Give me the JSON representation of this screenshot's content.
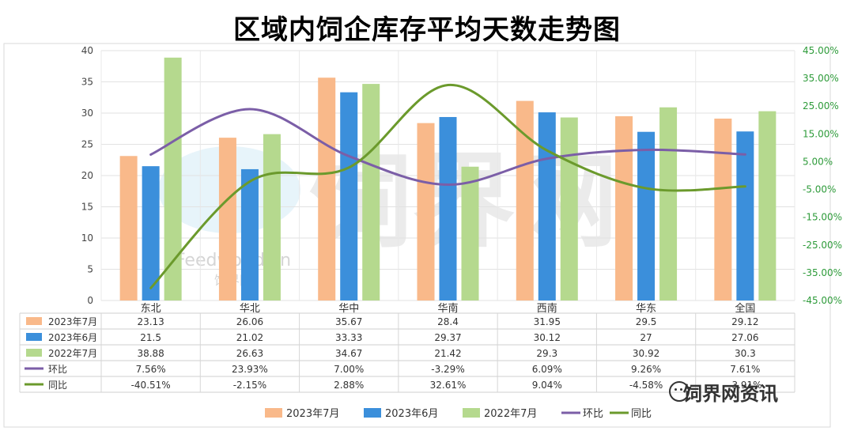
{
  "chart_data": {
    "type": "bar",
    "title": "区域内饲企库存平均天数走势图",
    "categories": [
      "东北",
      "华北",
      "华中",
      "华南",
      "西南",
      "华东",
      "全国"
    ],
    "series": [
      {
        "name": "2023年7月",
        "kind": "bar",
        "axis": "left",
        "color": "#F9B98A",
        "values": [
          23.13,
          26.06,
          35.67,
          28.4,
          31.95,
          29.5,
          29.12
        ]
      },
      {
        "name": "2023年6月",
        "kind": "bar",
        "axis": "left",
        "color": "#3B8FDB",
        "values": [
          21.5,
          21.02,
          33.33,
          29.37,
          30.12,
          27,
          27.06
        ]
      },
      {
        "name": "2022年7月",
        "kind": "bar",
        "axis": "left",
        "color": "#B5D98E",
        "values": [
          38.88,
          26.63,
          34.67,
          21.42,
          29.3,
          30.92,
          30.3
        ]
      },
      {
        "name": "环比",
        "kind": "line",
        "axis": "right",
        "color": "#7B5EA7",
        "values": [
          7.56,
          23.93,
          7.0,
          -3.29,
          6.09,
          9.26,
          7.61
        ]
      },
      {
        "name": "同比",
        "kind": "line",
        "axis": "right",
        "color": "#6B9A2C",
        "values": [
          -40.51,
          -2.15,
          2.88,
          32.61,
          9.04,
          -4.58,
          -3.91
        ]
      }
    ],
    "table_text": [
      [
        "23.13",
        "26.06",
        "35.67",
        "28.4",
        "31.95",
        "29.5",
        "29.12"
      ],
      [
        "21.5",
        "21.02",
        "33.33",
        "29.37",
        "30.12",
        "27",
        "27.06"
      ],
      [
        "38.88",
        "26.63",
        "34.67",
        "21.42",
        "29.3",
        "30.92",
        "30.3"
      ],
      [
        "7.56%",
        "23.93%",
        "7.00%",
        "-3.29%",
        "6.09%",
        "9.26%",
        "7.61%"
      ],
      [
        "-40.51%",
        "-2.15%",
        "2.88%",
        "32.61%",
        "9.04%",
        "-4.58%",
        "-3.91%"
      ]
    ],
    "y_left": {
      "min": 0,
      "max": 40,
      "step": 5,
      "ticks": [
        "0",
        "5",
        "10",
        "15",
        "20",
        "25",
        "30",
        "35",
        "40"
      ]
    },
    "y_right": {
      "min": -45,
      "max": 45,
      "ticks": [
        "-45.00%",
        "-35.00%",
        "-25.00%",
        "-15.00%",
        "-5.00%",
        "5.00%",
        "15.00%",
        "25.00%",
        "35.00%",
        "45.00%"
      ],
      "tick_color": "#2E9B3A"
    },
    "grid": true,
    "legend_position": "bottom"
  },
  "watermark": {
    "center_text": "饲界网",
    "logo_text": "Feedworld.cn",
    "logo_sub": "饲界网",
    "brand_text": "饲界网资讯"
  }
}
